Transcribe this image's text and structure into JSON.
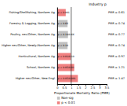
{
  "chart_data": {
    "type": "bar",
    "orientation": "horizontal",
    "title": "Industry p",
    "xlabel": "Proportionate Mortality Ratio (PMR)",
    "categories": [
      "Higher nec/Other, New Engl.",
      "School, Nonfarm Ag.",
      "Horticultural, Nonfarm Ag.",
      "Higher nec/Other, Newfy./Nonfarm Ag.",
      "Poultry, nec/Other, Nonfarm Ag.",
      "Forestry & Logging, Nonfarm Ag.",
      "Fishing/Shellfishing, Nonfarm Ag."
    ],
    "values": [
      1.47,
      1.21,
      0.97,
      0.74,
      0.77,
      0.74,
      0.61
    ],
    "colors": [
      "#f08080",
      "#f08080",
      "#f08080",
      "#c0c0c0",
      "#c0c0c0",
      "#c0c0c0",
      "#f08080"
    ],
    "data_labels": true,
    "value_labels": [
      "PMR = 1.47",
      "PMR = 1.21",
      "PMR = 0.97",
      "PMR = 0.74",
      "PMR = 0.77",
      "PMR = 0.74",
      "PMR = 0.61"
    ],
    "annotations": [
      "p < 0.05/0.001",
      "p < 0.05/0.01",
      "p < 0.01/0.10",
      "p < 0.10",
      "p < 0.10/0.66",
      "p < 0.66",
      "p < 0.001"
    ],
    "ref_line": 1,
    "xlim": [
      0,
      3.5
    ],
    "xticks": [
      0,
      0.5,
      1,
      1.5,
      2,
      2.5,
      3,
      3.5
    ],
    "legend": "bottom",
    "legend_entries": [
      {
        "name": "Non-sig",
        "color": "#c0c0c0"
      },
      {
        "name": "p < 0.01",
        "color": "#f08080"
      }
    ]
  }
}
